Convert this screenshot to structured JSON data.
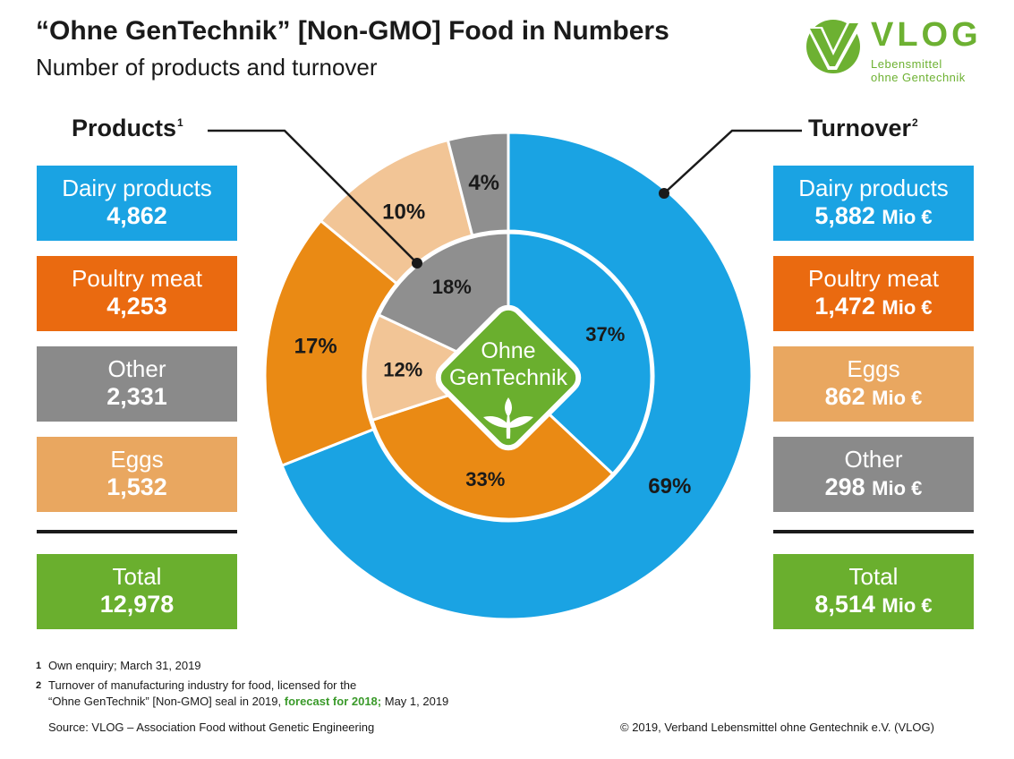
{
  "header": {
    "title": "“Ohne GenTechnik” [Non-GMO] Food in Numbers",
    "subtitle": "Number of products and turnover"
  },
  "logo": {
    "name": "VLOG",
    "line1": "Lebensmittel",
    "line2": "ohne Gentechnik"
  },
  "products": {
    "heading": "Products",
    "footnote_marker": "1",
    "items": [
      {
        "label": "Dairy products",
        "value": "4,862",
        "color": "#1aa3e3"
      },
      {
        "label": "Poultry meat",
        "value": "4,253",
        "color": "#ea6a10"
      },
      {
        "label": "Other",
        "value": "2,331",
        "color": "#8a8a8a"
      },
      {
        "label": "Eggs",
        "value": "1,532",
        "color": "#e9a760"
      }
    ],
    "total": {
      "label": "Total",
      "value": "12,978",
      "color": "#6aaf2e"
    }
  },
  "turnover": {
    "heading": "Turnover",
    "footnote_marker": "2",
    "unit": "Mio €",
    "items": [
      {
        "label": "Dairy products",
        "value": "5,882",
        "color": "#1aa3e3"
      },
      {
        "label": "Poultry meat",
        "value": "1,472",
        "color": "#ea6a10"
      },
      {
        "label": "Eggs",
        "value": "862",
        "color": "#e9a760"
      },
      {
        "label": "Other",
        "value": "298",
        "color": "#8a8a8a"
      }
    ],
    "total": {
      "label": "Total",
      "value": "8,514",
      "color": "#6aaf2e"
    }
  },
  "seal": {
    "line1": "Ohne",
    "line2": "GenTechnik",
    "color": "#6aaf2e"
  },
  "chart_data": [
    {
      "type": "pie",
      "title": "Turnover",
      "ring": "outer",
      "categories": [
        "Dairy products",
        "Poultry meat",
        "Eggs",
        "Other"
      ],
      "values": [
        69,
        17,
        10,
        4
      ],
      "labels": [
        "69%",
        "17%",
        "10%",
        "4%"
      ],
      "colors": [
        "#1aa3e3",
        "#ea8a14",
        "#f2c596",
        "#8f8f8f"
      ]
    },
    {
      "type": "pie",
      "title": "Products",
      "ring": "inner",
      "categories": [
        "Dairy products",
        "Poultry meat",
        "Eggs",
        "Other"
      ],
      "values": [
        37,
        33,
        12,
        18
      ],
      "labels": [
        "37%",
        "33%",
        "12%",
        "18%"
      ],
      "colors": [
        "#1aa3e3",
        "#ea8a14",
        "#f2c596",
        "#8f8f8f"
      ]
    }
  ],
  "footnotes": [
    {
      "marker": "1",
      "text": "Own enquiry; March 31, 2019"
    },
    {
      "marker": "2",
      "line1": "Turnover of manufacturing industry for food, licensed for the",
      "line2_a": "“Ohne GenTechnik” [Non-GMO] seal in 2019, ",
      "line2_b": "forecast for 2018;",
      "line2_c": " May 1, 2019"
    }
  ],
  "source": "Source: VLOG – Association Food without Genetic Engineering",
  "copyright": "© 2019, Verband Lebensmittel ohne Gentechnik e.V. (VLOG)"
}
